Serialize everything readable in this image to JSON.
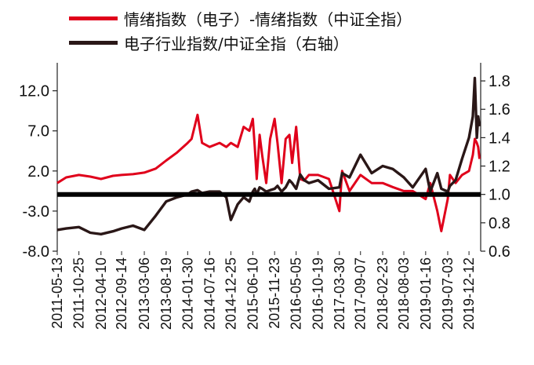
{
  "chart_data": {
    "type": "line",
    "title": "",
    "xlabel": "",
    "ylabel_left": "",
    "ylabel_right": "",
    "legend_placement": "top-left",
    "grid": false,
    "ylim_left": [
      -8.0,
      15.0
    ],
    "ylim_right": [
      0.6,
      1.9
    ],
    "left_ticks": [
      12.0,
      7.0,
      2.0,
      -3.0,
      -8.0
    ],
    "left_tick_labels": [
      "12.0",
      "7.0",
      "2.0",
      "-3.0",
      "-8.0"
    ],
    "right_ticks": [
      1.8,
      1.6,
      1.4,
      1.2,
      1.0,
      0.8,
      0.6
    ],
    "right_tick_labels": [
      "1.8",
      "1.6",
      "1.4",
      "1.2",
      "1.0",
      "0.8",
      "0.6"
    ],
    "x_tick_labels": [
      "2011-05-13",
      "2011-10-25",
      "2012-04-10",
      "2012-09-14",
      "2013-03-06",
      "2013-08-19",
      "2014-01-30",
      "2014-07-16",
      "2014-12-25",
      "2015-06-10",
      "2015-11-23",
      "2016-05-05",
      "2016-10-19",
      "2017-03-30",
      "2017-09-07",
      "2018-02-23",
      "2018-08-03",
      "2019-01-16",
      "2019-07-03",
      "2019-12-12"
    ],
    "reference_line": {
      "axis": "right",
      "value": 1.0,
      "color": "#000000"
    },
    "series": [
      {
        "name": "情绪指数（电子）-情绪指数（中证全指）",
        "axis": "left",
        "color": "#e0001b",
        "x": [
          "2011-05-13",
          "2011-07-20",
          "2011-10-25",
          "2012-01-20",
          "2012-04-10",
          "2012-07-10",
          "2012-09-14",
          "2012-12-10",
          "2013-03-06",
          "2013-06-01",
          "2013-08-19",
          "2013-11-10",
          "2014-01-30",
          "2014-03-01",
          "2014-04-15",
          "2014-05-20",
          "2014-07-16",
          "2014-09-30",
          "2014-11-20",
          "2014-12-25",
          "2015-02-15",
          "2015-04-01",
          "2015-05-15",
          "2015-06-10",
          "2015-06-25",
          "2015-07-10",
          "2015-08-01",
          "2015-08-20",
          "2015-09-20",
          "2015-10-20",
          "2015-11-23",
          "2015-12-15",
          "2016-01-15",
          "2016-02-15",
          "2016-03-15",
          "2016-04-05",
          "2016-05-05",
          "2016-06-05",
          "2016-07-05",
          "2016-08-10",
          "2016-10-19",
          "2017-01-10",
          "2017-03-30",
          "2017-04-20",
          "2017-06-15",
          "2017-09-07",
          "2017-12-01",
          "2018-02-23",
          "2018-05-10",
          "2018-08-03",
          "2018-10-10",
          "2019-01-16",
          "2019-02-20",
          "2019-04-15",
          "2019-05-15",
          "2019-07-03",
          "2019-07-20",
          "2019-09-01",
          "2019-10-20",
          "2019-12-12",
          "2020-01-10",
          "2020-01-25",
          "2020-02-10",
          "2020-02-20",
          "2020-03-01"
        ],
        "y": [
          0.5,
          1.2,
          1.5,
          1.3,
          1.0,
          1.4,
          1.5,
          1.6,
          1.8,
          2.3,
          3.3,
          4.3,
          5.5,
          6.0,
          9.0,
          5.5,
          5.0,
          5.5,
          5.0,
          5.5,
          5.0,
          7.5,
          7.0,
          8.5,
          5.0,
          1.0,
          6.5,
          4.0,
          0.5,
          6.0,
          8.5,
          5.5,
          0.5,
          6.0,
          6.5,
          3.0,
          7.5,
          1.0,
          0.8,
          1.5,
          1.5,
          1.0,
          -3.0,
          2.0,
          -0.5,
          1.5,
          0.5,
          0.5,
          0.0,
          -0.5,
          -0.5,
          -1.5,
          0.5,
          -3.0,
          -5.5,
          -1.5,
          1.5,
          0.5,
          1.5,
          2.0,
          4.0,
          6.0,
          5.5,
          5.0,
          3.5
        ]
      },
      {
        "name": "电子行业指数/中证全指（右轴）",
        "axis": "right",
        "color": "#2a1717",
        "x": [
          "2011-05-13",
          "2011-07-20",
          "2011-10-25",
          "2012-01-20",
          "2012-04-10",
          "2012-07-10",
          "2012-09-14",
          "2012-12-10",
          "2013-03-06",
          "2013-06-01",
          "2013-08-19",
          "2013-11-10",
          "2014-01-30",
          "2014-03-01",
          "2014-04-15",
          "2014-05-20",
          "2014-07-16",
          "2014-09-30",
          "2014-11-20",
          "2014-12-25",
          "2015-02-15",
          "2015-04-01",
          "2015-05-15",
          "2015-06-10",
          "2015-06-25",
          "2015-07-10",
          "2015-08-01",
          "2015-08-20",
          "2015-09-20",
          "2015-10-20",
          "2015-11-23",
          "2015-12-15",
          "2016-01-15",
          "2016-02-15",
          "2016-03-15",
          "2016-04-05",
          "2016-05-05",
          "2016-06-05",
          "2016-07-05",
          "2016-08-10",
          "2016-10-19",
          "2017-01-10",
          "2017-03-30",
          "2017-04-20",
          "2017-06-15",
          "2017-09-07",
          "2017-12-01",
          "2018-02-23",
          "2018-05-10",
          "2018-08-03",
          "2018-10-10",
          "2019-01-16",
          "2019-02-20",
          "2019-04-15",
          "2019-05-15",
          "2019-07-03",
          "2019-07-20",
          "2019-09-01",
          "2019-10-20",
          "2019-12-12",
          "2020-01-10",
          "2020-01-25",
          "2020-02-10",
          "2020-02-20",
          "2020-03-01"
        ],
        "y": [
          0.75,
          0.76,
          0.77,
          0.73,
          0.72,
          0.74,
          0.76,
          0.78,
          0.75,
          0.85,
          0.95,
          0.98,
          1.0,
          1.02,
          1.03,
          1.01,
          1.02,
          1.02,
          0.98,
          0.82,
          0.93,
          0.98,
          0.95,
          1.02,
          1.04,
          1.0,
          1.05,
          1.04,
          1.02,
          1.03,
          1.04,
          1.06,
          1.02,
          1.05,
          1.1,
          1.08,
          1.04,
          1.14,
          1.1,
          1.08,
          1.1,
          1.04,
          1.05,
          1.15,
          1.12,
          1.28,
          1.15,
          1.2,
          1.18,
          1.12,
          1.05,
          1.18,
          1.02,
          1.15,
          1.04,
          1.02,
          1.06,
          1.1,
          1.25,
          1.4,
          1.55,
          1.82,
          1.4,
          1.55,
          1.48
        ]
      }
    ]
  }
}
